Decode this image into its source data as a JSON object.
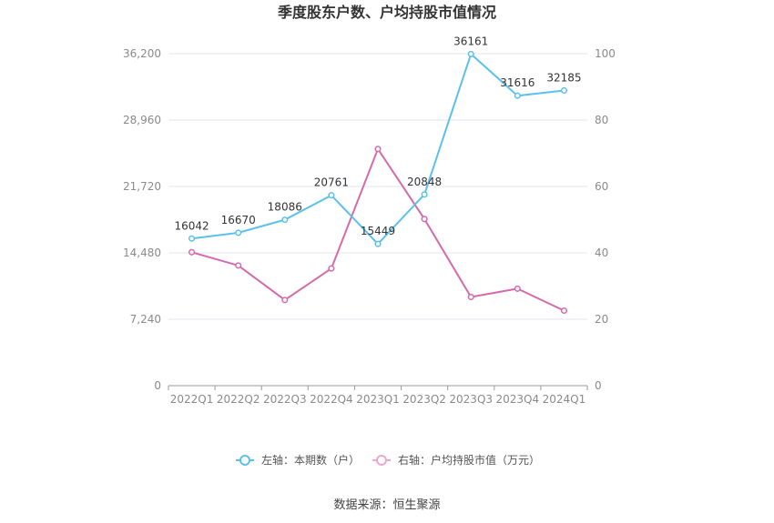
{
  "chart_data": {
    "type": "line",
    "title": "季度股东户数、户均持股市值情况",
    "categories": [
      "2022Q1",
      "2022Q2",
      "2022Q3",
      "2022Q4",
      "2023Q1",
      "2023Q2",
      "2023Q3",
      "2023Q4",
      "2024Q1"
    ],
    "left_axis": {
      "ticks": [
        "0",
        "7,240",
        "14,480",
        "21,720",
        "28,960",
        "36,200"
      ],
      "ylim": [
        0,
        36200
      ]
    },
    "right_axis": {
      "ticks": [
        "0",
        "20",
        "40",
        "60",
        "80",
        "100"
      ],
      "ylim": [
        0,
        100
      ]
    },
    "series": [
      {
        "name": "左轴：本期数（户）",
        "axis": "left",
        "color": "#5bc0eb",
        "values": [
          16042,
          16670,
          18086,
          20761,
          15449,
          20848,
          36161,
          31616,
          32185
        ],
        "labels": [
          "16042",
          "16670",
          "18086",
          "20761",
          "15449",
          "20848",
          "36161",
          "31616",
          "32185"
        ]
      },
      {
        "name": "右轴：户均持股市值（万元）",
        "axis": "right",
        "color": "#d46aaa",
        "values": [
          40.2,
          36.2,
          25.8,
          35.3,
          71.3,
          50.2,
          26.7,
          29.2,
          22.6
        ]
      }
    ],
    "grid": true,
    "legend_position": "bottom"
  },
  "source_text": "数据来源：恒生聚源"
}
